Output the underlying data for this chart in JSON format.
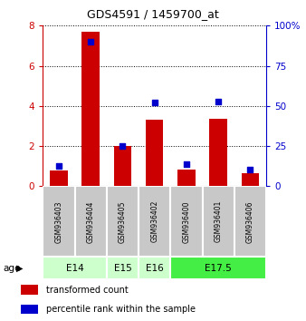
{
  "title": "GDS4591 / 1459700_at",
  "samples": [
    "GSM936403",
    "GSM936404",
    "GSM936405",
    "GSM936402",
    "GSM936400",
    "GSM936401",
    "GSM936406"
  ],
  "transformed_count": [
    0.8,
    7.7,
    2.0,
    3.3,
    0.85,
    3.35,
    0.65
  ],
  "percentile_rank": [
    12.5,
    90.0,
    25.0,
    52.0,
    13.5,
    53.0,
    10.5
  ],
  "age_groups": [
    {
      "label": "E14",
      "samples": [
        0,
        1
      ],
      "color": "#ccffcc"
    },
    {
      "label": "E15",
      "samples": [
        2
      ],
      "color": "#ccffcc"
    },
    {
      "label": "E16",
      "samples": [
        3
      ],
      "color": "#ccffcc"
    },
    {
      "label": "E17.5",
      "samples": [
        4,
        5,
        6
      ],
      "color": "#44ee44"
    }
  ],
  "ylim_left": [
    0,
    8
  ],
  "ylim_right": [
    0,
    100
  ],
  "yticks_left": [
    0,
    2,
    4,
    6,
    8
  ],
  "yticks_right": [
    0,
    25,
    50,
    75,
    100
  ],
  "bar_color": "#cc0000",
  "dot_color": "#0000cc",
  "left_axis_color": "#cc0000",
  "right_axis_color": "#0000cc",
  "grid_color": "#000000",
  "sample_bg_color": "#c8c8c8",
  "legend_items": [
    "transformed count",
    "percentile rank within the sample"
  ]
}
